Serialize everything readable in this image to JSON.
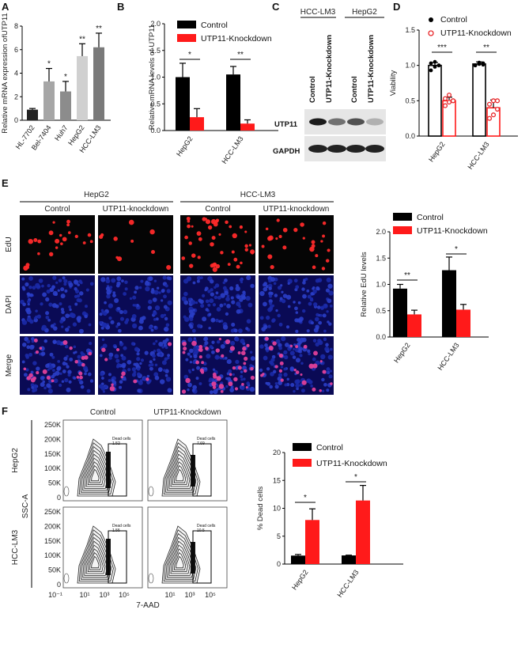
{
  "panels": {
    "A": "A",
    "B": "B",
    "C": "C",
    "D": "D",
    "E": "E",
    "F": "F"
  },
  "legend": {
    "control": "Control",
    "knockdown": "UTP11-Knockdown"
  },
  "colors": {
    "control": "#000000",
    "knockdown": "#ff1a1a",
    "cy_red": "#e8272a",
    "cy_blue": "#1a2a9a"
  },
  "chart_A": {
    "type": "bar",
    "ylabel": "Relative mRNA expression ofUTP11",
    "ylim": [
      0,
      8
    ],
    "yticks": [
      "0",
      "2",
      "4",
      "6",
      "8"
    ],
    "categories": [
      "HL-7702",
      "Bel-7404",
      "Huh7",
      "HepG2",
      "HCC-LM3"
    ],
    "values": [
      0.9,
      3.3,
      2.45,
      5.45,
      6.2
    ],
    "errors": [
      0.1,
      1.1,
      0.85,
      1.05,
      1.2
    ],
    "sig": [
      "",
      "*",
      "*",
      "**",
      "**"
    ],
    "colors": [
      "#222222",
      "#a6a6a6",
      "#8c8c8c",
      "#d0d0d0",
      "#7a7a7a"
    ]
  },
  "chart_B": {
    "type": "bar",
    "ylabel": "Relative mRNA levels of UTP11",
    "ylim": [
      0,
      2.0
    ],
    "yticks": [
      "0.0",
      "0.5",
      "1.0",
      "1.5",
      "2.0"
    ],
    "categories": [
      "HepG2",
      "HCC-LM3"
    ],
    "series": [
      {
        "name": "Control",
        "values": [
          1.0,
          1.05
        ],
        "errors": [
          0.26,
          0.15
        ]
      },
      {
        "name": "UTP11-Knockdown",
        "values": [
          0.25,
          0.13
        ],
        "errors": [
          0.16,
          0.07
        ]
      }
    ],
    "sig": [
      "*",
      "**"
    ]
  },
  "blot_C": {
    "cell_lines": [
      "HCC-LM3",
      "HepG2"
    ],
    "lanes": [
      "Control",
      "UTP11-Knockdown",
      "Control",
      "UTP11-Knockdown"
    ],
    "rows": [
      "UTP11",
      "GAPDH"
    ]
  },
  "chart_D": {
    "type": "bar",
    "ylabel": "Viability",
    "ylim": [
      0,
      1.5
    ],
    "yticks": [
      "0.0",
      "0.5",
      "1.0",
      "1.5"
    ],
    "categories": [
      "HepG2",
      "HCC-LM3"
    ],
    "series": [
      {
        "name": "Control",
        "values": [
          1.0,
          1.02
        ],
        "errors": [
          0.04,
          0.03
        ]
      },
      {
        "name": "UTP11-Knockdown",
        "values": [
          0.5,
          0.4
        ],
        "errors": [
          0.05,
          0.11
        ]
      }
    ],
    "points": {
      "control": [
        [
          0.93,
          0.98,
          1.0,
          1.03,
          1.05,
          1.0
        ],
        [
          1.0,
          1.02,
          1.03,
          1.0,
          1.04,
          1.01
        ]
      ],
      "knockdown": [
        [
          0.43,
          0.48,
          0.5,
          0.53,
          0.58,
          0.5
        ],
        [
          0.25,
          0.3,
          0.38,
          0.45,
          0.5,
          0.5
        ]
      ]
    },
    "sig": [
      "***",
      "**"
    ]
  },
  "micro_E": {
    "groups": [
      "HepG2",
      "HCC-LM3"
    ],
    "conditions": [
      "Control",
      "UTP11-knockdown",
      "Control",
      "UTP11-knockdown"
    ],
    "rows": [
      "EdU",
      "DAPI",
      "Merge"
    ]
  },
  "chart_E": {
    "type": "bar",
    "ylabel": "Relative EdU levels",
    "ylim": [
      0,
      2.0
    ],
    "yticks": [
      "0.0",
      "0.5",
      "1.0",
      "1.5",
      "2.0"
    ],
    "categories": [
      "HepG2",
      "HCC-LM3"
    ],
    "series": [
      {
        "name": "Control",
        "values": [
          0.92,
          1.27
        ],
        "errors": [
          0.08,
          0.25
        ]
      },
      {
        "name": "UTP11-Knockdown",
        "values": [
          0.43,
          0.52
        ],
        "errors": [
          0.08,
          0.1
        ]
      }
    ],
    "sig": [
      "**",
      "*"
    ]
  },
  "flow_F": {
    "columns": [
      "Control",
      "UTP11-Knockdown"
    ],
    "rows": [
      "HepG2",
      "HCC-LM3"
    ],
    "yaxis": "SSC-A",
    "xaxis": "7-AAD",
    "yticks": [
      "0",
      "50K",
      "100K",
      "150K",
      "200K",
      "250K"
    ],
    "xticks": [
      "10⁻¹",
      "10¹",
      "10³",
      "10⁵",
      "10¹",
      "10³",
      "10⁵"
    ],
    "gate_label": "Dead cells",
    "gate_values": [
      "1.52",
      "7.69",
      "1.55",
      "10.5"
    ]
  },
  "chart_F": {
    "type": "bar",
    "ylabel": "% Dead cells",
    "ylim": [
      0,
      20
    ],
    "yticks": [
      "0",
      "5",
      "10",
      "15",
      "20"
    ],
    "categories": [
      "HepG2",
      "HCC-LM3"
    ],
    "series": [
      {
        "name": "Control",
        "values": [
          1.52,
          1.55
        ],
        "errors": [
          0.2,
          0.05
        ]
      },
      {
        "name": "UTP11-Knockdown",
        "values": [
          7.9,
          11.4
        ],
        "errors": [
          2.0,
          2.7
        ]
      }
    ],
    "sig": [
      "*",
      "*"
    ]
  }
}
